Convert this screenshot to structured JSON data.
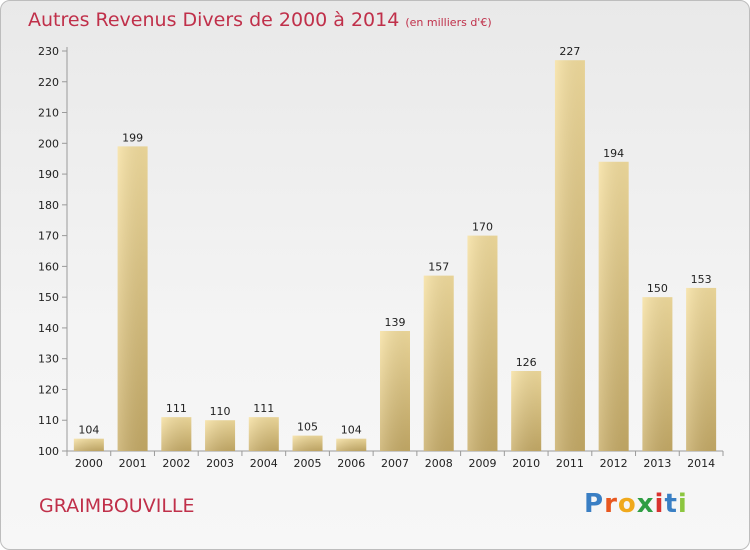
{
  "header": {
    "title": "Autres Revenus Divers de 2000 à 2014",
    "subtitle": "(en milliers d'€)"
  },
  "footer": {
    "commune": "GRAIMBOUVILLE",
    "logo_text": "Proxiti"
  },
  "colors": {
    "title": "#c0304a",
    "bar_light": "#f6e0a0",
    "bar_dark": "#c8ad68"
  },
  "chart_data": {
    "type": "bar",
    "categories": [
      "2000",
      "2001",
      "2002",
      "2003",
      "2004",
      "2005",
      "2006",
      "2007",
      "2008",
      "2009",
      "2010",
      "2011",
      "2012",
      "2013",
      "2014"
    ],
    "values": [
      104,
      199,
      111,
      110,
      111,
      105,
      104,
      139,
      157,
      170,
      126,
      227,
      194,
      150,
      153
    ],
    "ylim": [
      100,
      230
    ],
    "yticks": [
      100,
      110,
      120,
      130,
      140,
      150,
      160,
      170,
      180,
      190,
      200,
      210,
      220,
      230
    ],
    "grid": false,
    "legend": "none"
  }
}
